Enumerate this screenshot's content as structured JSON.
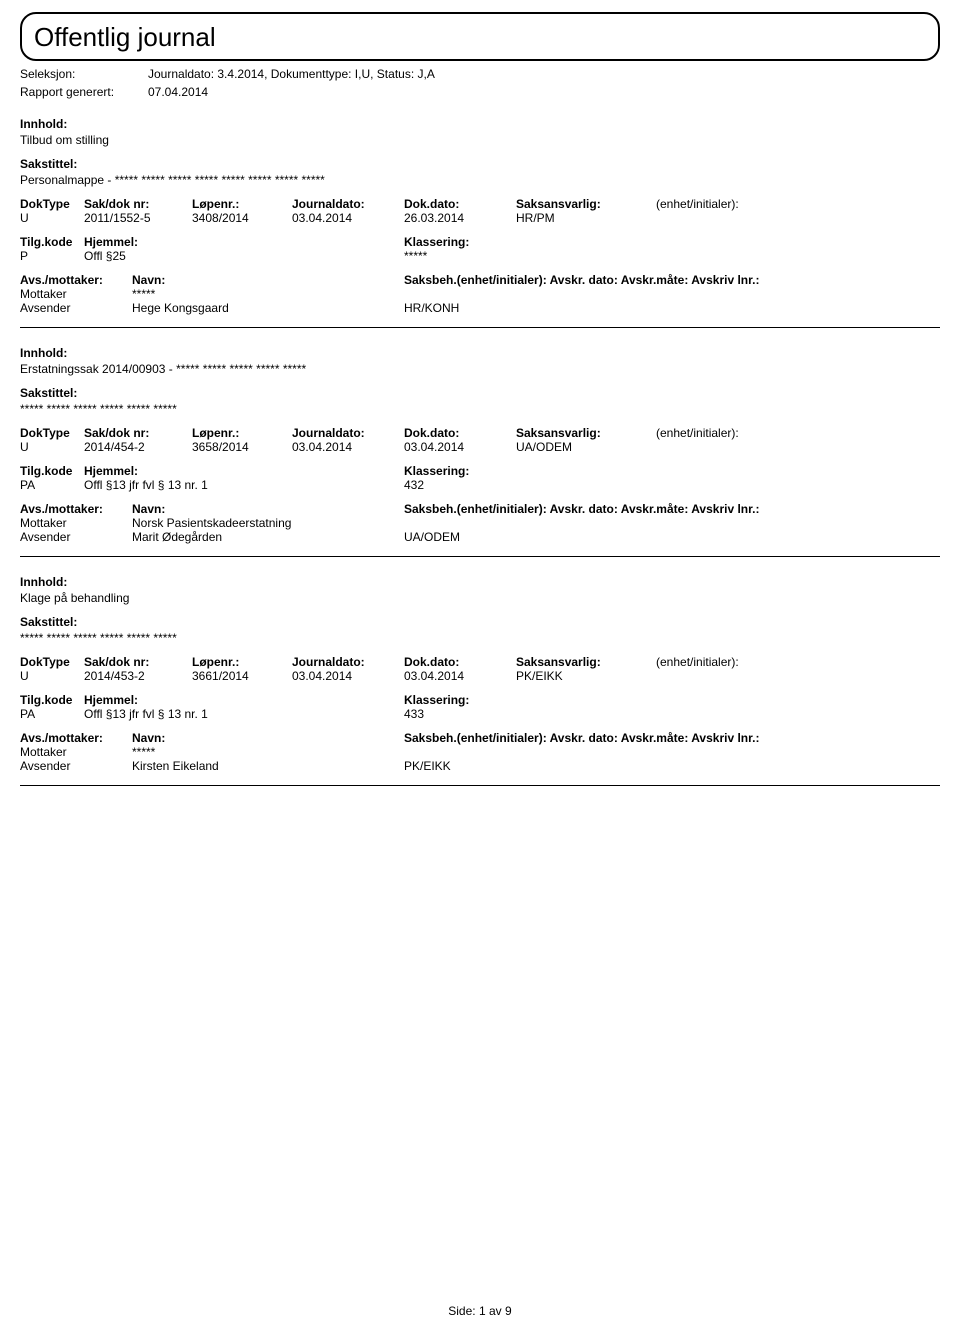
{
  "header": {
    "title": "Offentlig journal",
    "seleksjon_label": "Seleksjon:",
    "seleksjon_value": "Journaldato: 3.4.2014, Dokumenttype: I,U, Status: J,A",
    "rapport_label": "Rapport generert:",
    "rapport_value": "07.04.2014"
  },
  "labels": {
    "innhold": "Innhold:",
    "sakstittel": "Sakstittel:",
    "doktype": "DokType",
    "sakdok": "Sak/dok nr:",
    "lopenr": "Løpenr.:",
    "journaldato": "Journaldato:",
    "dokdato": "Dok.dato:",
    "saksansvarlig": "Saksansvarlig:",
    "enhet": "(enhet/initialer):",
    "tilgkode": "Tilg.kode",
    "hjemmel": "Hjemmel:",
    "klassering": "Klassering:",
    "avsmottaker": "Avs./mottaker:",
    "navn": "Navn:",
    "saksbeh_long": "Saksbeh.(enhet/initialer): Avskr. dato: Avskr.måte: Avskriv lnr.:",
    "mottaker": "Mottaker",
    "avsender": "Avsender"
  },
  "entries": [
    {
      "innhold": "Tilbud om stilling",
      "sakstittel": "Personalmappe - ***** ***** ***** ***** ***** ***** ***** *****",
      "doktype": "U",
      "sakdok": "2011/1552-5",
      "lopenr": "3408/2014",
      "journaldato": "03.04.2014",
      "dokdato": "26.03.2014",
      "saksansvarlig": "HR/PM",
      "tilgkode": "P",
      "hjemmel": "Offl §25",
      "klassering": "*****",
      "mottaker_name": "*****",
      "avsender_name": "Hege Kongsgaard",
      "avsender_code": "HR/KONH"
    },
    {
      "innhold": "Erstatningssak 2014/00903 - ***** ***** ***** ***** *****",
      "sakstittel": "***** ***** ***** ***** ***** *****",
      "doktype": "U",
      "sakdok": "2014/454-2",
      "lopenr": "3658/2014",
      "journaldato": "03.04.2014",
      "dokdato": "03.04.2014",
      "saksansvarlig": "UA/ODEM",
      "tilgkode": "PA",
      "hjemmel": "Offl §13 jfr fvl § 13 nr. 1",
      "klassering": "432",
      "mottaker_name": "Norsk Pasientskadeerstatning",
      "avsender_name": "Marit Ødegården",
      "avsender_code": "UA/ODEM"
    },
    {
      "innhold": "Klage på behandling",
      "sakstittel": "***** ***** ***** ***** ***** *****",
      "doktype": "U",
      "sakdok": "2014/453-2",
      "lopenr": "3661/2014",
      "journaldato": "03.04.2014",
      "dokdato": "03.04.2014",
      "saksansvarlig": "PK/EIKK",
      "tilgkode": "PA",
      "hjemmel": "Offl §13 jfr fvl § 13 nr. 1",
      "klassering": "433",
      "mottaker_name": "*****",
      "avsender_name": "Kirsten Eikeland",
      "avsender_code": "PK/EIKK"
    }
  ],
  "footer": {
    "side_label": "Side:",
    "page": "1",
    "av": "av",
    "total": "9"
  }
}
